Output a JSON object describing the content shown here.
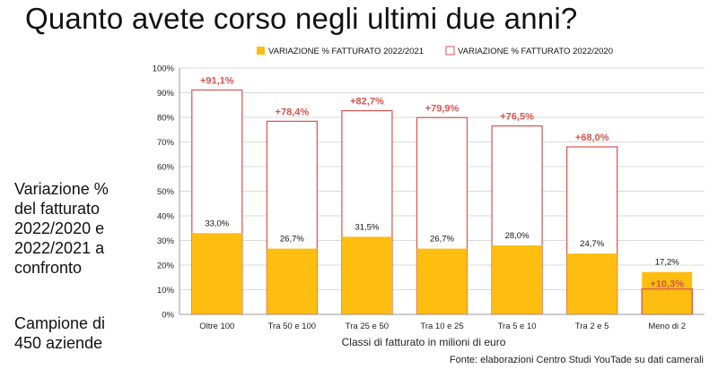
{
  "title": "Quanto avete corso negli ultimi due anni?",
  "side_text": {
    "block1": [
      "Variazione %",
      "del fatturato",
      "2022/2020 e",
      "2022/2021 a",
      "confronto"
    ],
    "block2": [
      "Campione di",
      "450 aziende"
    ]
  },
  "source": "Fonte: elaborazioni Centro Studi YouTade su dati camerali",
  "colors": {
    "series1_fill": "#FDBE10",
    "series2_stroke": "#D9534F",
    "label_red": "#D9534F"
  },
  "chart_data": {
    "type": "bar",
    "xlabel": "Classi di fatturato in milioni di euro",
    "ylabel": "",
    "ylim": [
      0,
      100
    ],
    "yticks": [
      "0%",
      "10%",
      "20%",
      "30%",
      "40%",
      "50%",
      "60%",
      "70%",
      "80%",
      "90%",
      "100%"
    ],
    "grid": true,
    "legend": "top",
    "categories": [
      "Oltre 100",
      "Tra 50 e 100",
      "Tra 25 e 50",
      "Tra 10 e 25",
      "Tra 5 e 10",
      "Tra 2 e 5",
      "Meno di 2"
    ],
    "series": [
      {
        "name": "VARIAZIONE % FATTURATO 2022/2021",
        "values": [
          33.0,
          26.7,
          31.5,
          26.7,
          28.0,
          24.7,
          17.2
        ],
        "labels": [
          "33,0%",
          "26,7%",
          "31,5%",
          "26,7%",
          "28,0%",
          "24,7%",
          "17,2%"
        ]
      },
      {
        "name": "VARIAZIONE % FATTURATO 2022/2020",
        "values": [
          91.1,
          78.4,
          82.7,
          79.9,
          76.5,
          68.0,
          10.3
        ],
        "labels": [
          "+91,1%",
          "+78,4%",
          "+82,7%",
          "+79,9%",
          "+76,5%",
          "+68,0%",
          "+10,3%"
        ]
      }
    ]
  }
}
